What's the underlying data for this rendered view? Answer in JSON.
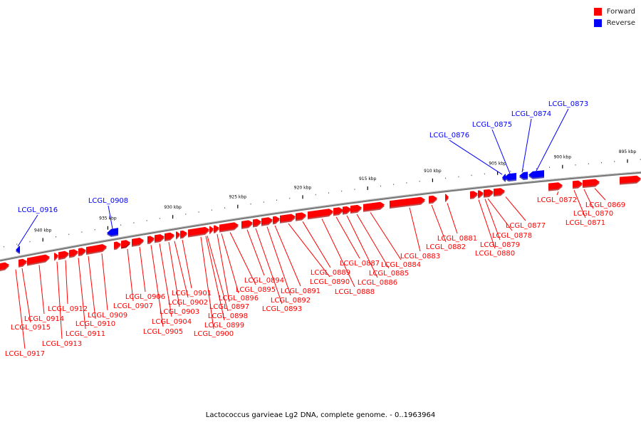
{
  "legend": {
    "forward": {
      "label": "Forward",
      "color": "#ff0000"
    },
    "reverse": {
      "label": "Reverse",
      "color": "#0000ff"
    }
  },
  "caption": "Lactococcus garvieae Lg2 DNA, complete genome. - 0..1963964",
  "chart_data": {
    "type": "genome-map",
    "ticks": [
      {
        "label": "895 kbp",
        "kbp": 895
      },
      {
        "label": "900 kbp",
        "kbp": 900
      },
      {
        "label": "905 kbp",
        "kbp": 905
      },
      {
        "label": "910 kbp",
        "kbp": 910
      },
      {
        "label": "915 kbp",
        "kbp": 915
      },
      {
        "label": "920 kbp",
        "kbp": 920
      },
      {
        "label": "925 kbp",
        "kbp": 925
      },
      {
        "label": "930 kbp",
        "kbp": 930
      },
      {
        "label": "935 kbp",
        "kbp": 935
      },
      {
        "label": "940 kbp",
        "kbp": 940
      }
    ],
    "forward_genes": [
      "LCGL_0869",
      "LCGL_0870",
      "LCGL_0871",
      "LCGL_0872",
      "LCGL_0877",
      "LCGL_0878",
      "LCGL_0879",
      "LCGL_0880",
      "LCGL_0881",
      "LCGL_0882",
      "LCGL_0883",
      "LCGL_0884",
      "LCGL_0885",
      "LCGL_0886",
      "LCGL_0887",
      "LCGL_0888",
      "LCGL_0889",
      "LCGL_0890",
      "LCGL_0891",
      "LCGL_0892",
      "LCGL_0893",
      "LCGL_0894",
      "LCGL_0895",
      "LCGL_0896",
      "LCGL_0897",
      "LCGL_0898",
      "LCGL_0899",
      "LCGL_0900",
      "LCGL_0901",
      "LCGL_0902",
      "LCGL_0903",
      "LCGL_0904",
      "LCGL_0905",
      "LCGL_0906",
      "LCGL_0907",
      "LCGL_0909",
      "LCGL_0910",
      "LCGL_0911",
      "LCGL_0912",
      "LCGL_0913",
      "LCGL_0914",
      "LCGL_0915",
      "LCGL_0917"
    ],
    "reverse_genes": [
      "LCGL_0873",
      "LCGL_0874",
      "LCGL_0875",
      "LCGL_0876",
      "LCGL_0908",
      "LCGL_0916"
    ]
  }
}
